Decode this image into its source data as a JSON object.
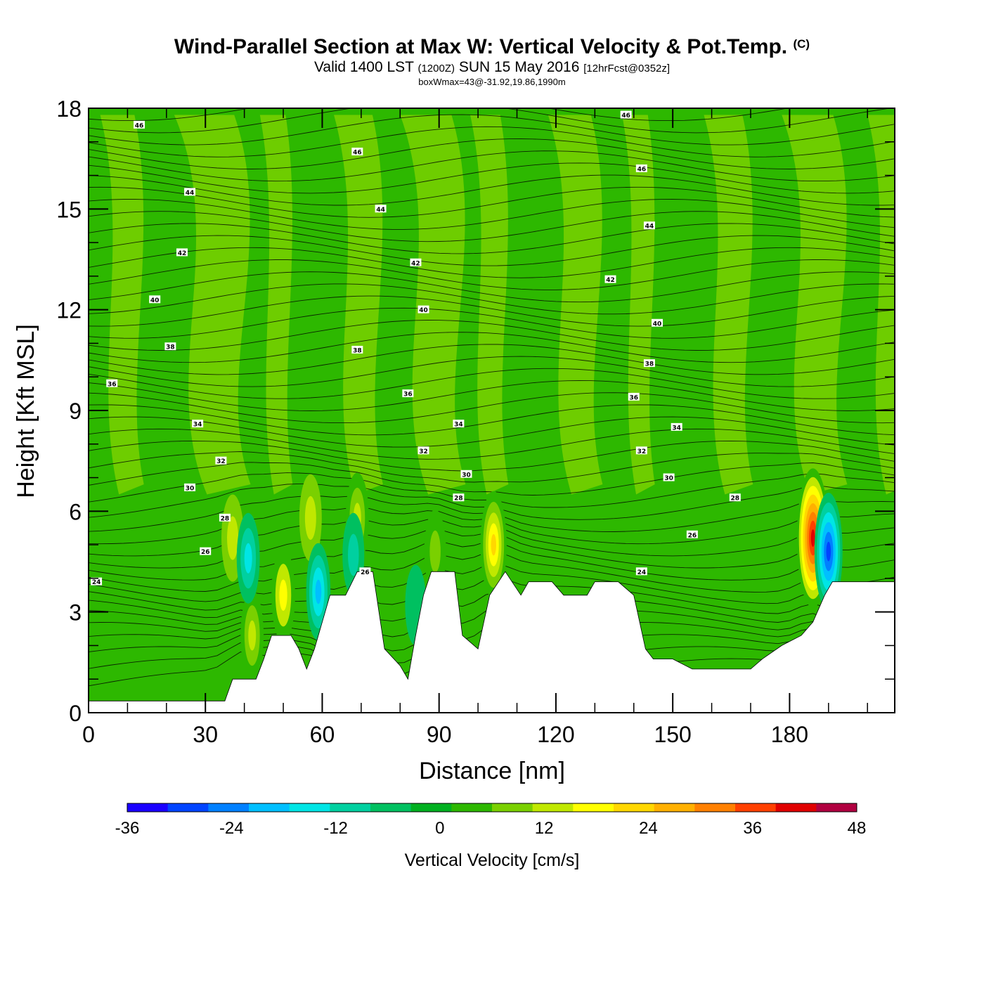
{
  "header": {
    "title": "Wind-Parallel Section at Max W: Vertical Velocity & Pot.Temp.",
    "copyright_mark": "(C)",
    "valid_prefix": "Valid 1400 LST",
    "valid_utc": "(1200Z)",
    "valid_date": "SUN 15 May 2016",
    "forecast": "[12hrFcst@0352z]",
    "box_wmax": "boxWmax=43@-31.92,19.86,1990m"
  },
  "colorbar": {
    "title": "Vertical Velocity [cm/s]",
    "colors": [
      "#1a00ff",
      "#0044ff",
      "#0080ff",
      "#00bfff",
      "#00e5e5",
      "#00d0a0",
      "#00c060",
      "#00b020",
      "#2db800",
      "#7ad000",
      "#c0e800",
      "#ffff00",
      "#ffd700",
      "#ffb000",
      "#ff8000",
      "#ff4000",
      "#e00000",
      "#b00040"
    ],
    "ticks": [
      "-36",
      "-24",
      "-12",
      "0",
      "12",
      "24",
      "36",
      "48"
    ]
  },
  "chart_data": {
    "type": "heatmap",
    "title": "Wind-Parallel Section at Max W: Vertical Velocity & Pot.Temp.",
    "xlabel": "Distance [nm]",
    "ylabel": "Height [Kft MSL]",
    "xlim": [
      0,
      207
    ],
    "ylim": [
      0,
      18
    ],
    "x_ticks": [
      "0",
      "30",
      "60",
      "90",
      "120",
      "150",
      "180"
    ],
    "y_ticks": [
      "0",
      "3",
      "6",
      "9",
      "12",
      "15",
      "18"
    ],
    "terrain_kft": [
      [
        0,
        0.35
      ],
      [
        35,
        0.35
      ],
      [
        37,
        1.0
      ],
      [
        43,
        1.0
      ],
      [
        45,
        1.6
      ],
      [
        47,
        2.3
      ],
      [
        52,
        2.3
      ],
      [
        54,
        1.9
      ],
      [
        56,
        1.3
      ],
      [
        58,
        1.9
      ],
      [
        62,
        3.5
      ],
      [
        66,
        3.5
      ],
      [
        69,
        4.2
      ],
      [
        73,
        4.2
      ],
      [
        76,
        1.9
      ],
      [
        80,
        1.4
      ],
      [
        82,
        1.0
      ],
      [
        84,
        2.3
      ],
      [
        86,
        3.5
      ],
      [
        88,
        4.2
      ],
      [
        94,
        4.2
      ],
      [
        96,
        2.3
      ],
      [
        100,
        1.9
      ],
      [
        103,
        3.5
      ],
      [
        107,
        4.2
      ],
      [
        111,
        3.5
      ],
      [
        113,
        3.9
      ],
      [
        119,
        3.9
      ],
      [
        122,
        3.5
      ],
      [
        128,
        3.5
      ],
      [
        130,
        3.9
      ],
      [
        136,
        3.9
      ],
      [
        140,
        3.5
      ],
      [
        143,
        1.9
      ],
      [
        145,
        1.6
      ],
      [
        150,
        1.6
      ],
      [
        155,
        1.3
      ],
      [
        170,
        1.3
      ],
      [
        173,
        1.6
      ],
      [
        178,
        2.0
      ],
      [
        183,
        2.3
      ],
      [
        186,
        2.7
      ],
      [
        189,
        3.5
      ],
      [
        191,
        3.9
      ],
      [
        207,
        3.9
      ]
    ],
    "updraft_cores": [
      {
        "x_nm": 37,
        "z_kft": 5.2,
        "w_cms": 12
      },
      {
        "x_nm": 42,
        "z_kft": 2.3,
        "w_cms": 14
      },
      {
        "x_nm": 50,
        "z_kft": 3.5,
        "w_cms": 16
      },
      {
        "x_nm": 57,
        "z_kft": 5.8,
        "w_cms": 12
      },
      {
        "x_nm": 69,
        "z_kft": 5.8,
        "w_cms": 14
      },
      {
        "x_nm": 89,
        "z_kft": 4.8,
        "w_cms": 10
      },
      {
        "x_nm": 104,
        "z_kft": 5.0,
        "w_cms": 24
      },
      {
        "x_nm": 186,
        "z_kft": 5.2,
        "w_cms": 43
      }
    ],
    "downdraft_cores": [
      {
        "x_nm": 41,
        "z_kft": 4.6,
        "w_cms": -14
      },
      {
        "x_nm": 59,
        "z_kft": 3.6,
        "w_cms": -18
      },
      {
        "x_nm": 68,
        "z_kft": 4.7,
        "w_cms": -10
      },
      {
        "x_nm": 84,
        "z_kft": 3.2,
        "w_cms": -8
      },
      {
        "x_nm": 190,
        "z_kft": 4.8,
        "w_cms": -30
      }
    ],
    "theta_labels": [
      {
        "text": "46",
        "x_nm": 13,
        "z_kft": 17.5
      },
      {
        "text": "46",
        "x_nm": 69,
        "z_kft": 16.7
      },
      {
        "text": "46",
        "x_nm": 138,
        "z_kft": 17.8
      },
      {
        "text": "46",
        "x_nm": 142,
        "z_kft": 16.2
      },
      {
        "text": "44",
        "x_nm": 26,
        "z_kft": 15.5
      },
      {
        "text": "44",
        "x_nm": 75,
        "z_kft": 15.0
      },
      {
        "text": "44",
        "x_nm": 144,
        "z_kft": 14.5
      },
      {
        "text": "42",
        "x_nm": 24,
        "z_kft": 13.7
      },
      {
        "text": "42",
        "x_nm": 84,
        "z_kft": 13.4
      },
      {
        "text": "42",
        "x_nm": 134,
        "z_kft": 12.9
      },
      {
        "text": "40",
        "x_nm": 17,
        "z_kft": 12.3
      },
      {
        "text": "40",
        "x_nm": 86,
        "z_kft": 12.0
      },
      {
        "text": "40",
        "x_nm": 146,
        "z_kft": 11.6
      },
      {
        "text": "38",
        "x_nm": 21,
        "z_kft": 10.9
      },
      {
        "text": "38",
        "x_nm": 69,
        "z_kft": 10.8
      },
      {
        "text": "38",
        "x_nm": 144,
        "z_kft": 10.4
      },
      {
        "text": "36",
        "x_nm": 6,
        "z_kft": 9.8
      },
      {
        "text": "36",
        "x_nm": 82,
        "z_kft": 9.5
      },
      {
        "text": "36",
        "x_nm": 140,
        "z_kft": 9.4
      },
      {
        "text": "34",
        "x_nm": 28,
        "z_kft": 8.6
      },
      {
        "text": "34",
        "x_nm": 95,
        "z_kft": 8.6
      },
      {
        "text": "34",
        "x_nm": 151,
        "z_kft": 8.5
      },
      {
        "text": "32",
        "x_nm": 34,
        "z_kft": 7.5
      },
      {
        "text": "32",
        "x_nm": 86,
        "z_kft": 7.8
      },
      {
        "text": "32",
        "x_nm": 142,
        "z_kft": 7.8
      },
      {
        "text": "30",
        "x_nm": 26,
        "z_kft": 6.7
      },
      {
        "text": "30",
        "x_nm": 97,
        "z_kft": 7.1
      },
      {
        "text": "30",
        "x_nm": 149,
        "z_kft": 7.0
      },
      {
        "text": "28",
        "x_nm": 35,
        "z_kft": 5.8
      },
      {
        "text": "28",
        "x_nm": 95,
        "z_kft": 6.4
      },
      {
        "text": "28",
        "x_nm": 166,
        "z_kft": 6.4
      },
      {
        "text": "26",
        "x_nm": 30,
        "z_kft": 4.8
      },
      {
        "text": "26",
        "x_nm": 71,
        "z_kft": 4.2
      },
      {
        "text": "26",
        "x_nm": 155,
        "z_kft": 5.3
      },
      {
        "text": "24",
        "x_nm": 2,
        "z_kft": 3.9
      },
      {
        "text": "24",
        "x_nm": 142,
        "z_kft": 4.2
      }
    ]
  }
}
